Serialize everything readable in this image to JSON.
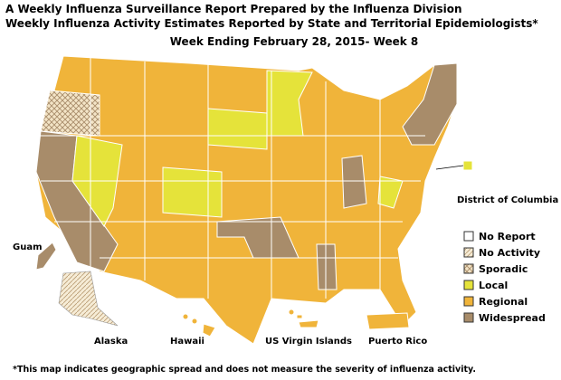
{
  "header": {
    "title_line1": "A Weekly Influenza Surveillance Report Prepared by the Influenza Division",
    "title_line2": "Weekly Influenza Activity Estimates Reported by State and Territorial Epidemiologists*",
    "week": "Week Ending February 28, 2015- Week 8"
  },
  "legend": [
    "No Report",
    "No Activity",
    "Sporadic",
    "Local",
    "Regional",
    "Widespread"
  ],
  "places": {
    "guam": "Guam",
    "alaska": "Alaska",
    "hawaii": "Hawaii",
    "virgin_islands": "US Virgin Islands",
    "puerto_rico": "Puerto Rico",
    "dc": "District of Columbia"
  },
  "footnote": "*This map indicates geographic spread and does not measure the severity of influenza activity."
}
